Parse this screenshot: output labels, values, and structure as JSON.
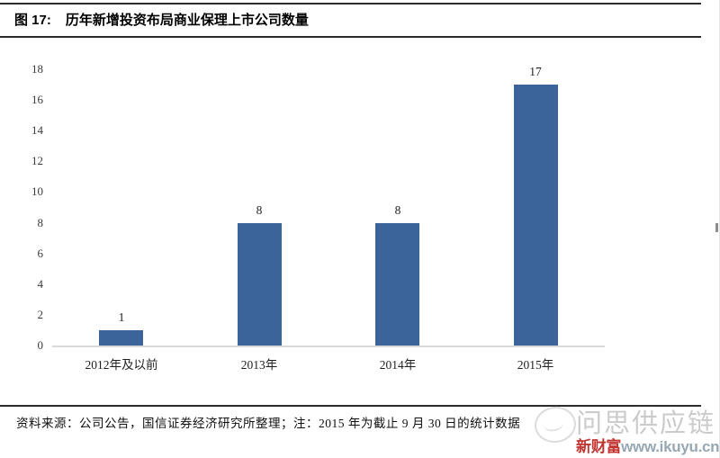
{
  "figure": {
    "fig_label": "图 17:",
    "title": "历年新增投资布局商业保理上市公司数量",
    "source_note": "资料来源：公司公告，国信证券经济研究所整理；注：2015 年为截止 9 月 30 日的统计数据"
  },
  "chart_data": {
    "type": "bar",
    "categories": [
      "2012年及以前",
      "2013年",
      "2014年",
      "2015年"
    ],
    "values": [
      1,
      8,
      8,
      17
    ],
    "data_labels": [
      "1",
      "8",
      "8",
      "17"
    ],
    "title": "历年新增投资布局商业保理上市公司数量",
    "xlabel": "",
    "ylabel": "",
    "ylim": [
      0,
      18
    ],
    "ytick_step": 2,
    "yticks": [
      0,
      2,
      4,
      6,
      8,
      10,
      12,
      14,
      16,
      18
    ],
    "bar_color": "#3b649b",
    "axis_line_color": "#d9d9d9",
    "grid": false,
    "legend": null
  },
  "watermark": {
    "brand_text": "问思供应链",
    "brand_color": "#cbcbcb",
    "site_prefix": "新财富",
    "site_prefix_color": "#c13531",
    "site_url": "www.ikuyu.cn",
    "site_url_color": "#97a8b4"
  }
}
